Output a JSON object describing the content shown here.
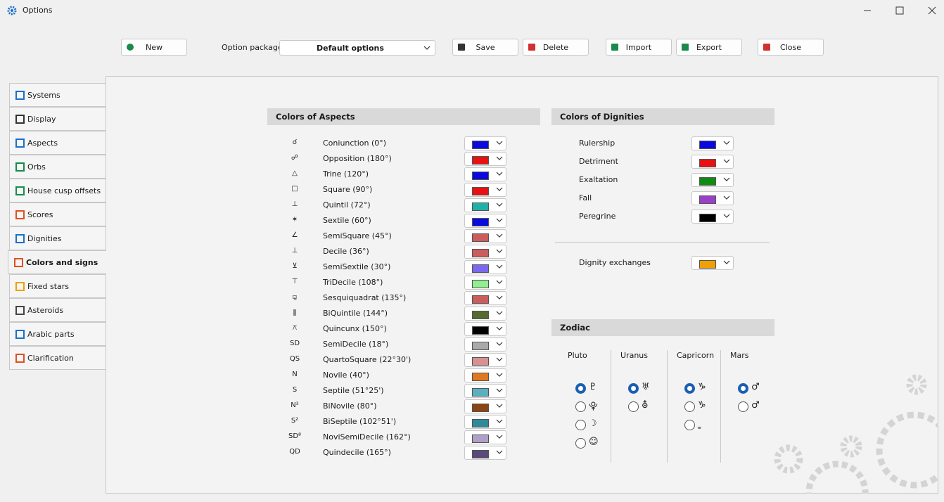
{
  "window": {
    "title": "Options"
  },
  "toolbar": {
    "new": "New",
    "option_package_label": "Option package",
    "option_package": "Default options",
    "save": "Save",
    "delete": "Delete",
    "import": "Import",
    "export": "Export",
    "close": "Close"
  },
  "tabs": {
    "items": [
      "Systems",
      "Display",
      "Aspects",
      "Orbs",
      "House cusp offsets",
      "Scores",
      "Dignities",
      "Colors and signs",
      "Fixed stars",
      "Asteroids",
      "Arabic parts",
      "Clarification"
    ],
    "selected": 7
  },
  "aspects": {
    "title": "Colors of Aspects",
    "rows": [
      {
        "symbol": "☌",
        "name": "Coniunction (0°)",
        "color": "#0a0adc"
      },
      {
        "symbol": "☍",
        "name": "Opposition (180°)",
        "color": "#e81010"
      },
      {
        "symbol": "△",
        "name": "Trine (120°)",
        "color": "#0a0adc"
      },
      {
        "symbol": "□",
        "name": "Square (90°)",
        "color": "#e81010"
      },
      {
        "symbol": "⊥",
        "name": "Quintil (72°)",
        "color": "#20b0a8"
      },
      {
        "symbol": "✶",
        "name": "Sextile (60°)",
        "color": "#0a0adc"
      },
      {
        "symbol": "∠",
        "name": "SemiSquare (45°)",
        "color": "#cd5c5c"
      },
      {
        "symbol": "⊥",
        "name": "Decile (36°)",
        "color": "#cd5c5c"
      },
      {
        "symbol": "⊻",
        "name": "SemiSextile (30°)",
        "color": "#7b68ee"
      },
      {
        "symbol": "⊤",
        "name": "TriDecile (108°)",
        "color": "#90ee90"
      },
      {
        "symbol": "⚼",
        "name": "Sesquiquadrat (135°)",
        "color": "#cd5c5c"
      },
      {
        "symbol": "ǁ",
        "name": "BiQuintile (144°)",
        "color": "#556b2f"
      },
      {
        "symbol": "⚻",
        "name": "Quincunx (150°)",
        "color": "#000000"
      },
      {
        "symbol": "SD",
        "name": "SemiDecile (18°)",
        "color": "#a9a9a9"
      },
      {
        "symbol": "QS",
        "name": "QuartoSquare (22°30')",
        "color": "#d89090"
      },
      {
        "symbol": "N",
        "name": "Novile (40°)",
        "color": "#e07820"
      },
      {
        "symbol": "S",
        "name": "Septile (51°25')",
        "color": "#5ab0c0"
      },
      {
        "symbol": "N²",
        "name": "BiNovile (80°)",
        "color": "#8b4513"
      },
      {
        "symbol": "S²",
        "name": "BiSeptile (102°51')",
        "color": "#2e8b9a"
      },
      {
        "symbol": "SD⁸",
        "name": "NoviSemiDecile (162°)",
        "color": "#b0a0c8"
      },
      {
        "symbol": "QD",
        "name": "Quindecile (165°)",
        "color": "#5a4a7a"
      }
    ]
  },
  "dignities": {
    "title": "Colors of Dignities",
    "rows": [
      {
        "name": "Rulership",
        "color": "#0a0adc"
      },
      {
        "name": "Detriment",
        "color": "#e81010"
      },
      {
        "name": "Exaltation",
        "color": "#108a10"
      },
      {
        "name": "Fall",
        "color": "#9a40c8"
      },
      {
        "name": "Peregrine",
        "color": "#000000"
      }
    ],
    "exchange": {
      "name": "Dignity exchanges",
      "color": "#f0a000"
    }
  },
  "zodiac": {
    "title": "Zodiac",
    "groups": [
      {
        "name": "Pluto",
        "options": [
          "♇",
          "⯓",
          "☽",
          "☺"
        ],
        "selected": 0
      },
      {
        "name": "Uranus",
        "options": [
          "♅",
          "⛢"
        ],
        "selected": 0
      },
      {
        "name": "Capricorn",
        "options": [
          "♑",
          "♑",
          "ࢅ"
        ],
        "selected": 0
      },
      {
        "name": "Mars",
        "options": [
          "♂",
          "♂"
        ],
        "selected": 0
      }
    ]
  }
}
